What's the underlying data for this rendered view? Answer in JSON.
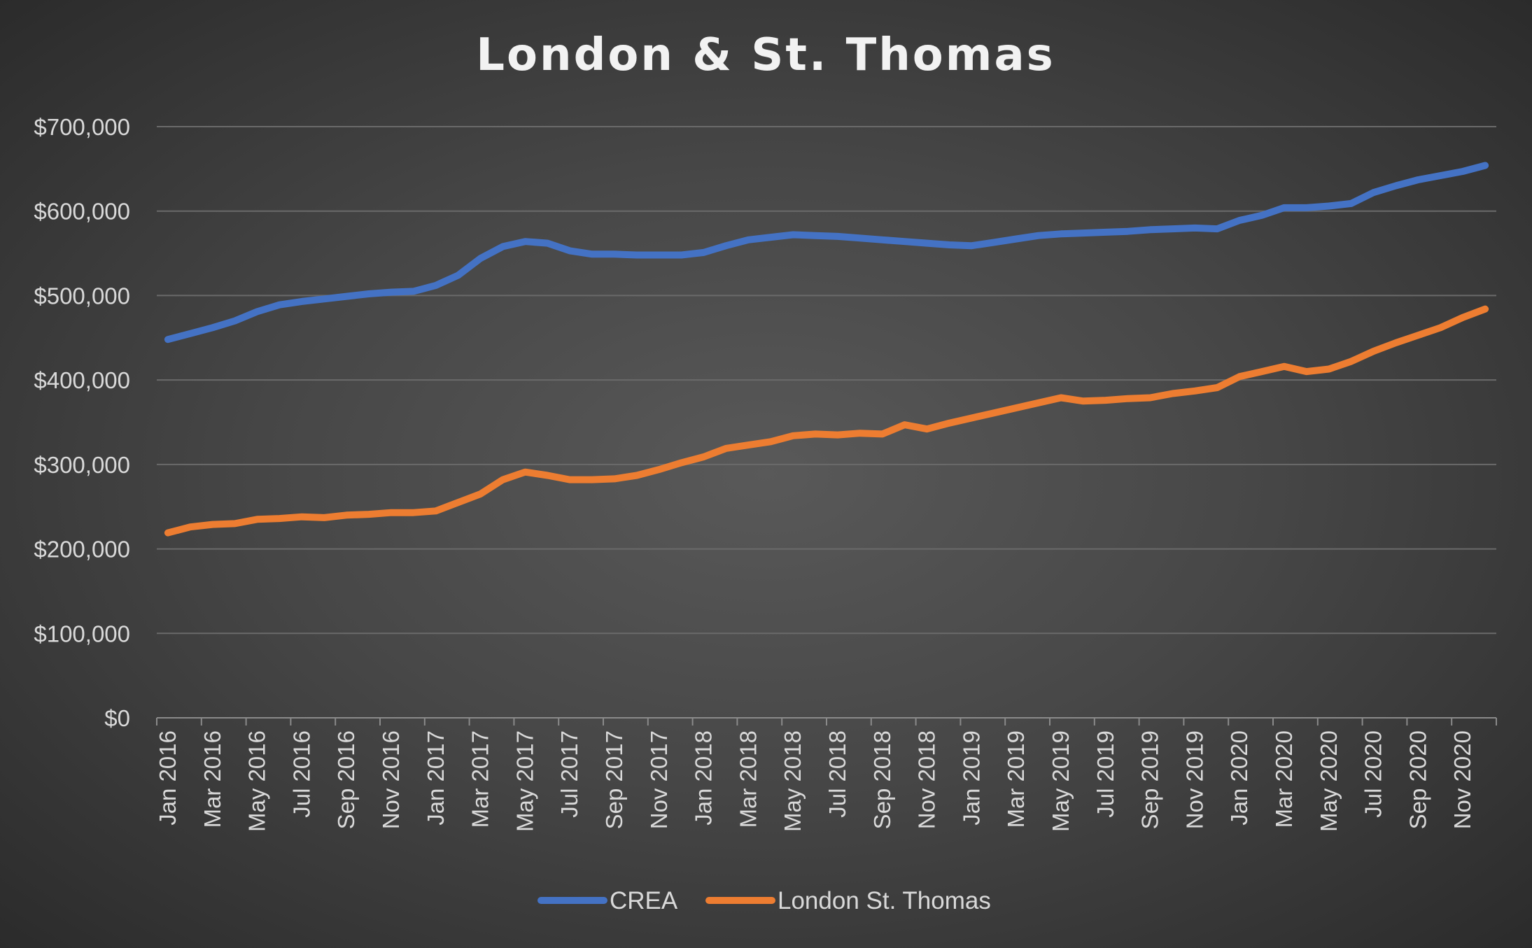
{
  "chart_data": {
    "type": "line",
    "title": "London & St. Thomas",
    "xlabel": "",
    "ylabel": "",
    "ylim": [
      0,
      700000
    ],
    "y_ticks": [
      0,
      100000,
      200000,
      300000,
      400000,
      500000,
      600000,
      700000
    ],
    "y_tick_labels": [
      "$0",
      "$100,000",
      "$200,000",
      "$300,000",
      "$400,000",
      "$500,000",
      "$600,000",
      "$700,000"
    ],
    "x_tick_labels": [
      "Jan 2016",
      "Mar 2016",
      "May 2016",
      "Jul 2016",
      "Sep 2016",
      "Nov 2016",
      "Jan 2017",
      "Mar 2017",
      "May 2017",
      "Jul 2017",
      "Sep 2017",
      "Nov 2017",
      "Jan 2018",
      "Mar 2018",
      "May 2018",
      "Jul 2018",
      "Sep 2018",
      "Nov 2018",
      "Jan 2019",
      "Mar 2019",
      "May 2019",
      "Jul 2019",
      "Sep 2019",
      "Nov 2019",
      "Jan 2020",
      "Mar 2020",
      "May 2020",
      "Jul 2020",
      "Sep 2020",
      "Nov 2020"
    ],
    "grid": true,
    "legend_position": "bottom-center",
    "series": [
      {
        "name": "CREA",
        "color": "#4472c4",
        "values": [
          448000,
          455000,
          462000,
          470000,
          481000,
          489000,
          493000,
          496000,
          499000,
          502000,
          504000,
          505000,
          512000,
          524000,
          544000,
          558000,
          564000,
          562000,
          553000,
          549000,
          549000,
          548000,
          548000,
          548000,
          551000,
          559000,
          566000,
          569000,
          572000,
          571000,
          570000,
          568000,
          566000,
          564000,
          562000,
          560000,
          559000,
          563000,
          567000,
          571000,
          573000,
          574000,
          575000,
          576000,
          578000,
          579000,
          580000,
          579000,
          589000,
          595000,
          604000,
          604000,
          606000,
          609000,
          622000,
          630000,
          637000,
          642000,
          647000,
          654000
        ]
      },
      {
        "name": "London St. Thomas",
        "color": "#ed7d31",
        "values": [
          219000,
          226000,
          229000,
          230000,
          235000,
          236000,
          238000,
          237000,
          240000,
          241000,
          243000,
          243000,
          245000,
          255000,
          265000,
          282000,
          291000,
          287000,
          282000,
          282000,
          283000,
          287000,
          294000,
          302000,
          309000,
          319000,
          323000,
          327000,
          334000,
          336000,
          335000,
          337000,
          336000,
          347000,
          342000,
          349000,
          355000,
          361000,
          367000,
          373000,
          379000,
          375000,
          376000,
          378000,
          379000,
          384000,
          387000,
          391000,
          404000,
          410000,
          416000,
          410000,
          413000,
          422000,
          434000,
          444000,
          453000,
          462000,
          474000,
          484000
        ]
      }
    ]
  }
}
